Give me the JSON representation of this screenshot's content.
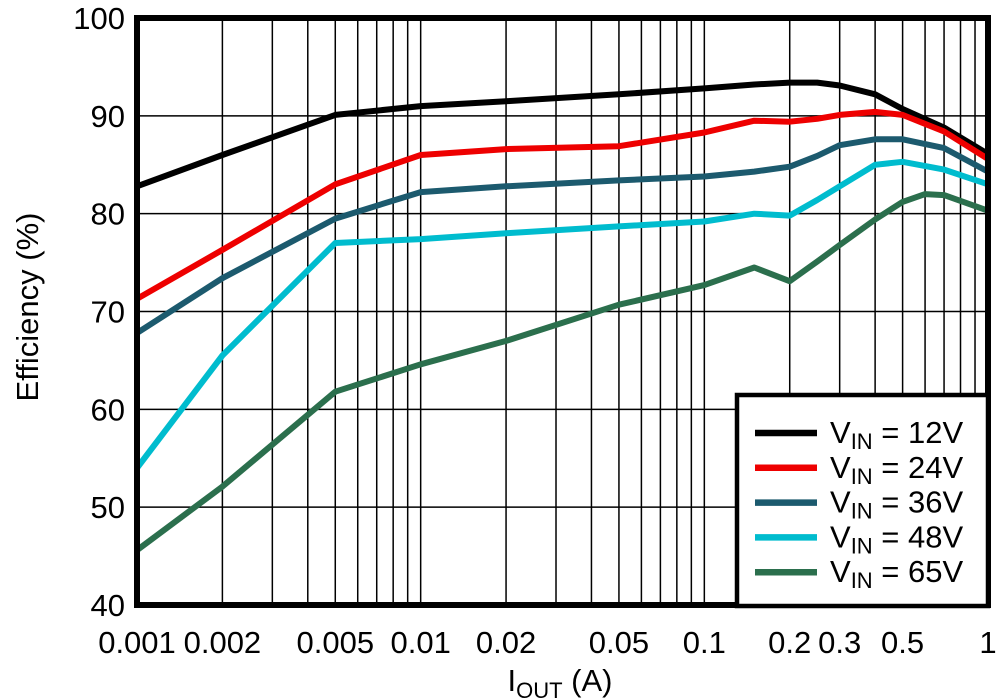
{
  "figure": {
    "background": "#ffffff",
    "axis_color": "#000000",
    "grid_color": "#000000"
  },
  "chart_data": {
    "type": "line",
    "title": "",
    "xlabel": "IOUT (A)",
    "xlabel_parts": {
      "main": "I",
      "sub": "OUT",
      "suffix": " (A)"
    },
    "ylabel": "Efficiency (%)",
    "x_scale": "log",
    "xlim": [
      0.001,
      1
    ],
    "ylim": [
      40,
      100
    ],
    "grid": "on",
    "x_ticks": [
      {
        "value": 0.001,
        "label": "0.001"
      },
      {
        "value": 0.002,
        "label": "0.002"
      },
      {
        "value": 0.005,
        "label": "0.005"
      },
      {
        "value": 0.01,
        "label": "0.01"
      },
      {
        "value": 0.02,
        "label": "0.02"
      },
      {
        "value": 0.05,
        "label": "0.05"
      },
      {
        "value": 0.1,
        "label": "0.1"
      },
      {
        "value": 0.2,
        "label": "0.2"
      },
      {
        "value": 0.3,
        "label": "0.3"
      },
      {
        "value": 0.5,
        "label": "0.5"
      },
      {
        "value": 1,
        "label": "1"
      }
    ],
    "y_ticks": [
      {
        "value": 40,
        "label": "40"
      },
      {
        "value": 50,
        "label": "50"
      },
      {
        "value": 60,
        "label": "60"
      },
      {
        "value": 70,
        "label": "70"
      },
      {
        "value": 80,
        "label": "80"
      },
      {
        "value": 90,
        "label": "90"
      },
      {
        "value": 100,
        "label": "100"
      }
    ],
    "legend": {
      "position": "bottom-right",
      "prefix": "V",
      "sub": "IN",
      "equals": " = "
    },
    "series": [
      {
        "name": "VIN = 12V",
        "vin": "12V",
        "color": "#000000",
        "points": [
          [
            0.001,
            82.8
          ],
          [
            0.002,
            86.0
          ],
          [
            0.005,
            90.1
          ],
          [
            0.01,
            91.0
          ],
          [
            0.02,
            91.5
          ],
          [
            0.05,
            92.2
          ],
          [
            0.1,
            92.8
          ],
          [
            0.15,
            93.2
          ],
          [
            0.2,
            93.4
          ],
          [
            0.25,
            93.4
          ],
          [
            0.3,
            93.1
          ],
          [
            0.4,
            92.2
          ],
          [
            0.5,
            90.7
          ],
          [
            0.7,
            88.8
          ],
          [
            1,
            86.1
          ]
        ]
      },
      {
        "name": "VIN = 24V",
        "vin": "24V",
        "color": "#ee0000",
        "points": [
          [
            0.001,
            71.3
          ],
          [
            0.002,
            76.3
          ],
          [
            0.005,
            83.0
          ],
          [
            0.01,
            86.0
          ],
          [
            0.02,
            86.6
          ],
          [
            0.05,
            86.9
          ],
          [
            0.1,
            88.3
          ],
          [
            0.15,
            89.5
          ],
          [
            0.2,
            89.4
          ],
          [
            0.25,
            89.7
          ],
          [
            0.3,
            90.1
          ],
          [
            0.4,
            90.4
          ],
          [
            0.5,
            90.1
          ],
          [
            0.7,
            88.4
          ],
          [
            1,
            85.6
          ]
        ]
      },
      {
        "name": "VIN = 36V",
        "vin": "36V",
        "color": "#1c5a6e",
        "points": [
          [
            0.001,
            67.8
          ],
          [
            0.002,
            73.4
          ],
          [
            0.005,
            79.5
          ],
          [
            0.01,
            82.2
          ],
          [
            0.02,
            82.8
          ],
          [
            0.05,
            83.4
          ],
          [
            0.1,
            83.8
          ],
          [
            0.15,
            84.3
          ],
          [
            0.2,
            84.8
          ],
          [
            0.25,
            85.9
          ],
          [
            0.3,
            87.0
          ],
          [
            0.4,
            87.6
          ],
          [
            0.5,
            87.6
          ],
          [
            0.7,
            86.7
          ],
          [
            1,
            84.3
          ]
        ]
      },
      {
        "name": "VIN = 48V",
        "vin": "48V",
        "color": "#00bcce",
        "points": [
          [
            0.001,
            54.0
          ],
          [
            0.002,
            65.5
          ],
          [
            0.005,
            77.0
          ],
          [
            0.01,
            77.4
          ],
          [
            0.02,
            78.0
          ],
          [
            0.05,
            78.7
          ],
          [
            0.1,
            79.2
          ],
          [
            0.15,
            80.0
          ],
          [
            0.2,
            79.8
          ],
          [
            0.25,
            81.4
          ],
          [
            0.3,
            82.8
          ],
          [
            0.4,
            85.0
          ],
          [
            0.5,
            85.3
          ],
          [
            0.7,
            84.5
          ],
          [
            1,
            83.0
          ]
        ]
      },
      {
        "name": "VIN = 65V",
        "vin": "65V",
        "color": "#2b6f4d",
        "points": [
          [
            0.001,
            45.6
          ],
          [
            0.002,
            52.1
          ],
          [
            0.005,
            61.8
          ],
          [
            0.01,
            64.6
          ],
          [
            0.02,
            67.0
          ],
          [
            0.05,
            70.7
          ],
          [
            0.1,
            72.7
          ],
          [
            0.15,
            74.5
          ],
          [
            0.2,
            73.1
          ],
          [
            0.25,
            75.1
          ],
          [
            0.3,
            76.8
          ],
          [
            0.4,
            79.4
          ],
          [
            0.5,
            81.2
          ],
          [
            0.6,
            82.0
          ],
          [
            0.7,
            81.9
          ],
          [
            1,
            80.3
          ]
        ]
      }
    ]
  }
}
